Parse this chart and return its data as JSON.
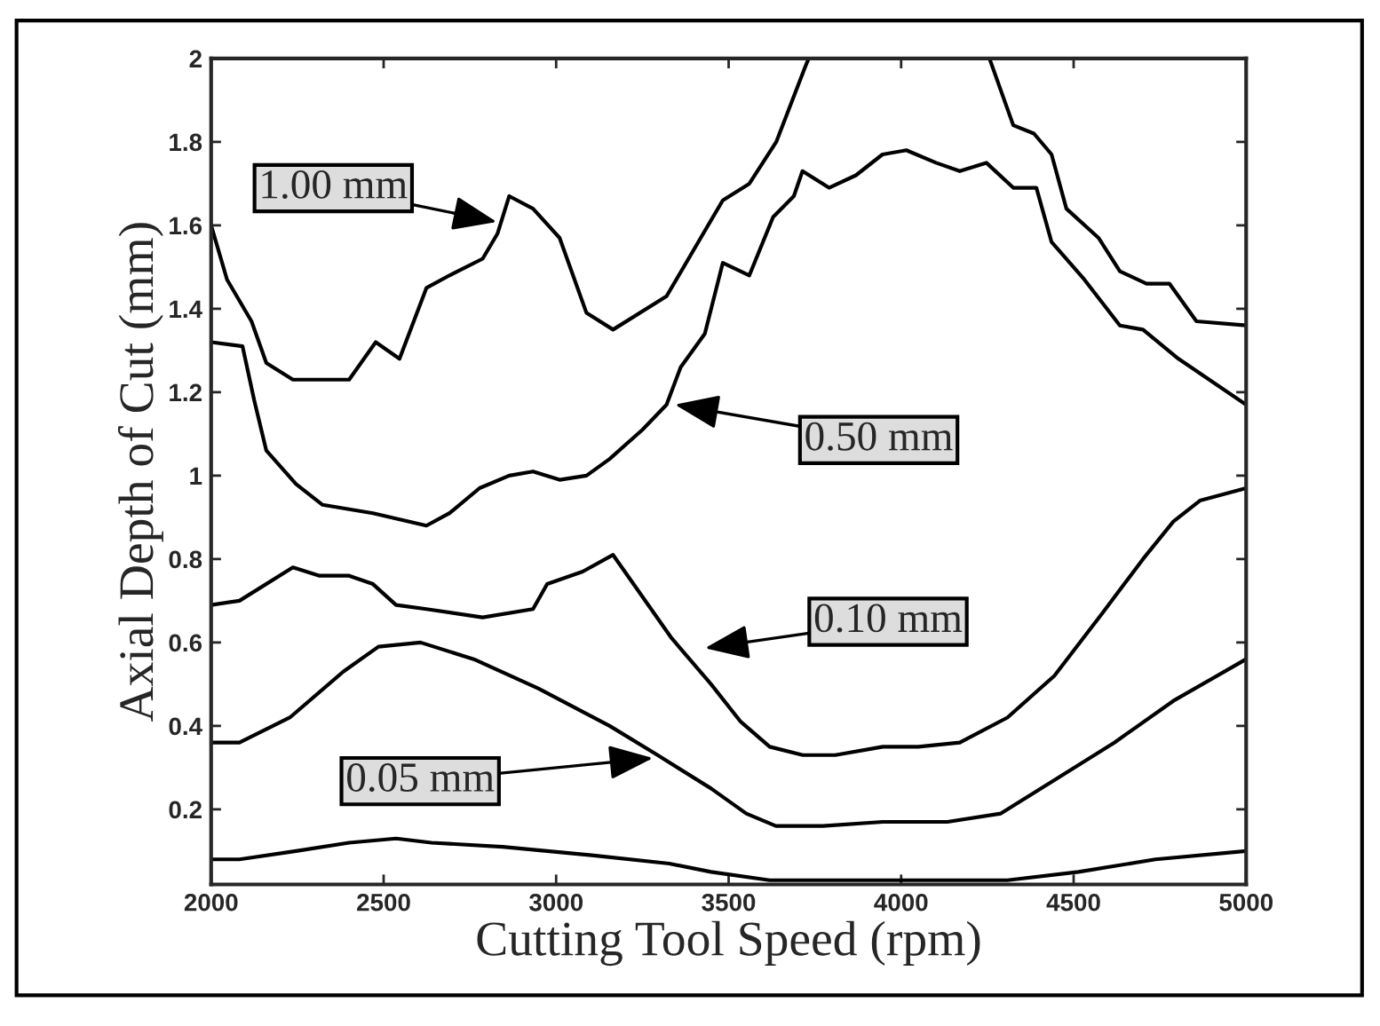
{
  "chart_data": {
    "type": "line",
    "xlabel": "Cutting Tool Speed (rpm)",
    "ylabel": "Axial Depth of Cut (mm)",
    "xlim": [
      2000,
      5000
    ],
    "ylim": [
      0.02,
      2
    ],
    "xticks": [
      2000,
      2500,
      3000,
      3500,
      4000,
      4500,
      5000
    ],
    "yticks": [
      0.2,
      0.4,
      0.6,
      0.8,
      1,
      1.2,
      1.4,
      1.6,
      1.8,
      2
    ],
    "grid": false,
    "marker": "none",
    "line_style": "solid",
    "series": [
      {
        "color": "#000000",
        "x": [
          2000,
          2046,
          2117,
          2160,
          2237,
          2400,
          2477,
          2546,
          2624,
          2691,
          2787,
          2830,
          2864,
          2933,
          3010,
          3088,
          3165,
          3320,
          3412,
          3483,
          3560,
          3638,
          3722,
          3732,
          4000,
          4256,
          4325,
          4385,
          4436,
          4479,
          4572,
          4634,
          4711,
          4778,
          4856,
          5000
        ],
        "values": [
          1.6,
          1.47,
          1.37,
          1.27,
          1.23,
          1.23,
          1.32,
          1.28,
          1.45,
          1.48,
          1.52,
          1.58,
          1.67,
          1.64,
          1.57,
          1.39,
          1.35,
          1.43,
          1.56,
          1.66,
          1.7,
          1.8,
          1.98,
          2.0,
          null,
          2.0,
          1.84,
          1.82,
          1.77,
          1.64,
          1.57,
          1.49,
          1.46,
          1.46,
          1.37,
          1.36
        ]
      },
      {
        "color": "#000000",
        "x": [
          2000,
          2091,
          2125,
          2160,
          2246,
          2323,
          2469,
          2624,
          2691,
          2778,
          2864,
          2933,
          3010,
          3088,
          3155,
          3250,
          3320,
          3361,
          3431,
          3483,
          3560,
          3629,
          3689,
          3714,
          3791,
          3869,
          3946,
          4015,
          4101,
          4170,
          4247,
          4325,
          4392,
          4436,
          4531,
          4634,
          4701,
          4804,
          5000
        ],
        "values": [
          1.32,
          1.31,
          1.18,
          1.06,
          0.98,
          0.93,
          0.91,
          0.88,
          0.91,
          0.97,
          1.0,
          1.01,
          0.99,
          1.0,
          1.04,
          1.11,
          1.17,
          1.26,
          1.34,
          1.51,
          1.48,
          1.62,
          1.67,
          1.73,
          1.69,
          1.72,
          1.77,
          1.78,
          1.75,
          1.73,
          1.75,
          1.69,
          1.69,
          1.56,
          1.47,
          1.36,
          1.35,
          1.28,
          1.17
        ]
      },
      {
        "color": "#000000",
        "x": [
          2000,
          2082,
          2237,
          2314,
          2400,
          2469,
          2536,
          2624,
          2787,
          2933,
          2974,
          3077,
          3165,
          3335,
          3449,
          3535,
          3619,
          3715,
          3809,
          3947,
          4050,
          4170,
          4308,
          4444,
          4583,
          4701,
          4789,
          4866,
          5000
        ],
        "values": [
          0.69,
          0.7,
          0.78,
          0.76,
          0.76,
          0.74,
          0.69,
          0.68,
          0.66,
          0.68,
          0.74,
          0.77,
          0.81,
          0.61,
          0.5,
          0.41,
          0.35,
          0.33,
          0.33,
          0.35,
          0.35,
          0.36,
          0.42,
          0.52,
          0.67,
          0.8,
          0.89,
          0.94,
          0.97
        ]
      },
      {
        "color": "#000000",
        "x": [
          2000,
          2082,
          2228,
          2383,
          2485,
          2607,
          2761,
          2948,
          3155,
          3294,
          3449,
          3551,
          3637,
          3773,
          3947,
          4134,
          4289,
          4444,
          4618,
          4789,
          5000
        ],
        "values": [
          0.36,
          0.36,
          0.42,
          0.53,
          0.59,
          0.6,
          0.56,
          0.49,
          0.4,
          0.33,
          0.25,
          0.19,
          0.16,
          0.16,
          0.17,
          0.17,
          0.19,
          0.27,
          0.36,
          0.46,
          0.56
        ]
      },
      {
        "color": "#000000",
        "x": [
          2000,
          2082,
          2246,
          2400,
          2536,
          2639,
          2845,
          3103,
          3328,
          3449,
          3619,
          3964,
          4308,
          4514,
          4737,
          5000
        ],
        "values": [
          0.08,
          0.08,
          0.1,
          0.12,
          0.13,
          0.12,
          0.11,
          0.09,
          0.07,
          0.05,
          0.03,
          0.03,
          0.03,
          0.05,
          0.08,
          0.1
        ]
      }
    ],
    "annotations": [
      "1.00 mm",
      "0.50 mm",
      "0.10 mm",
      "0.05 mm"
    ]
  }
}
